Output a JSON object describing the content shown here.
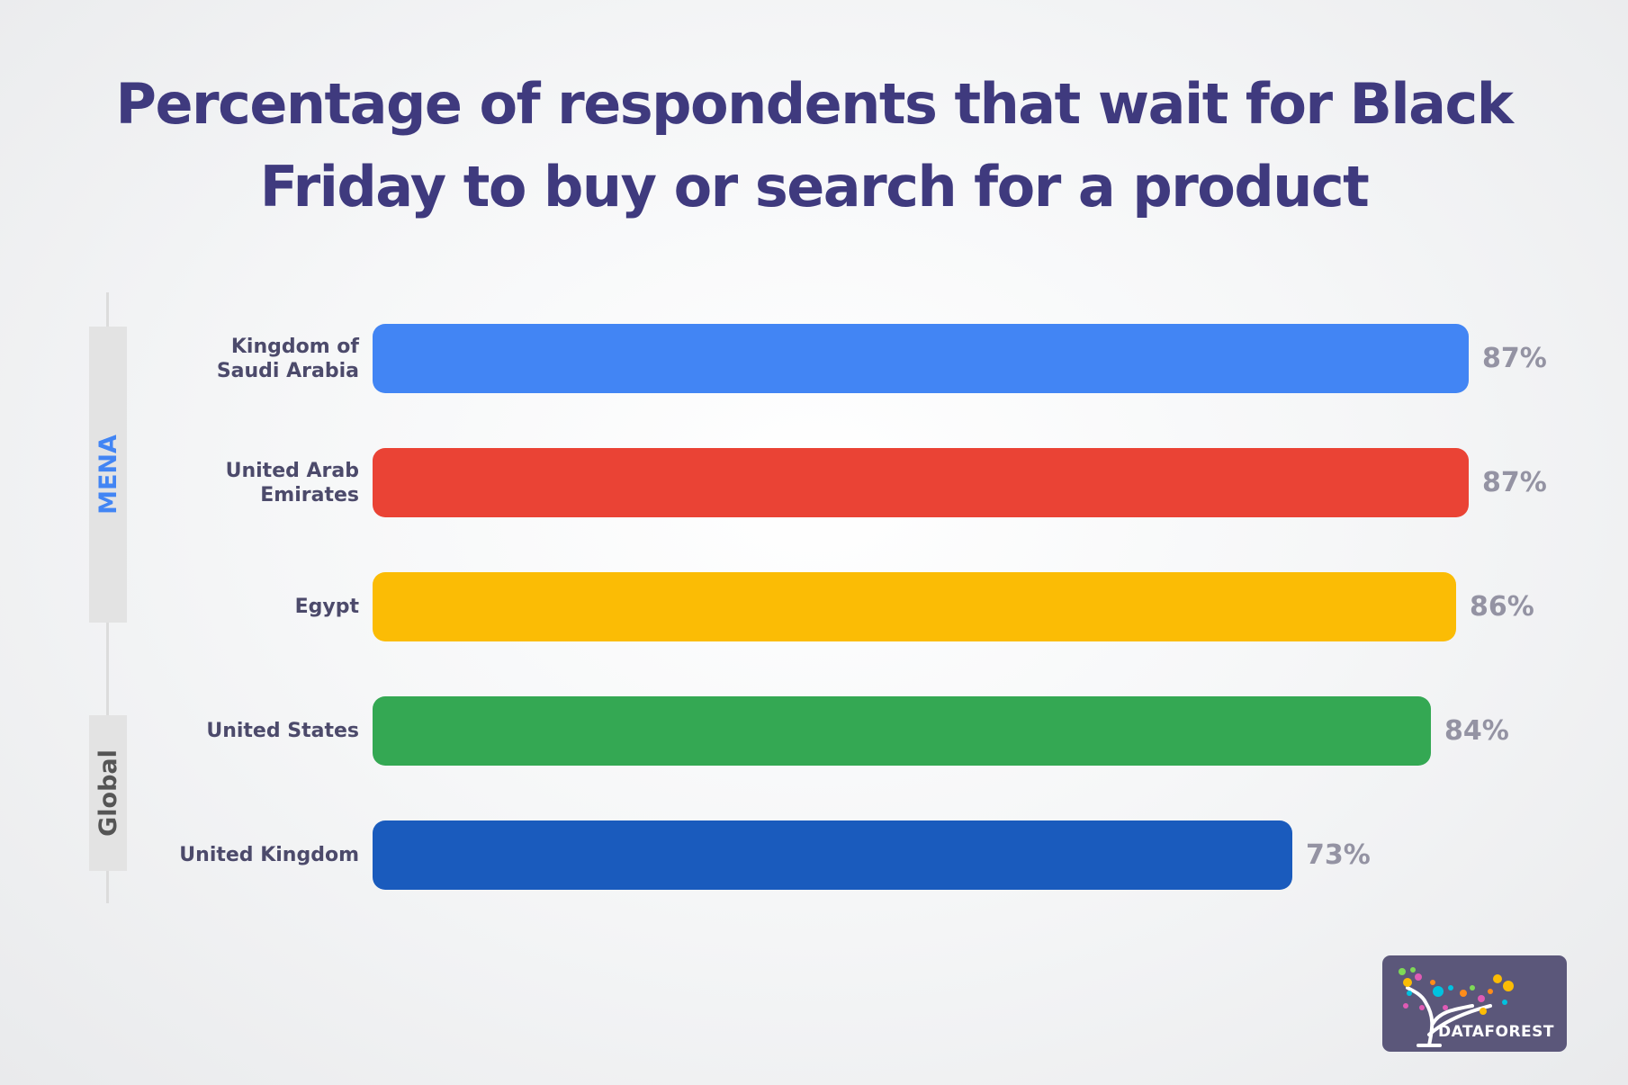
{
  "title_line1": "Percentage of respondents that wait for Black",
  "title_line2": "Friday to buy or search for a product",
  "groups": [
    {
      "label": "MENA",
      "color": "#4285f4"
    },
    {
      "label": "Global",
      "color": "#555555"
    }
  ],
  "logo": {
    "text": "DATAFOREST"
  },
  "chart_data": {
    "type": "bar",
    "orientation": "horizontal",
    "title": "Percentage of respondents that wait for Black Friday to buy or search for a product",
    "categories": [
      "Kingdom of Saudi Arabia",
      "United Arab Emirates",
      "Egypt",
      "United States",
      "United Kingdom"
    ],
    "values": [
      87,
      87,
      86,
      84,
      73
    ],
    "value_labels": [
      "87%",
      "87%",
      "86%",
      "84%",
      "73%"
    ],
    "colors": [
      "#4285f4",
      "#ea4335",
      "#fbbc05",
      "#34a853",
      "#1a5bbd"
    ],
    "groups": [
      {
        "name": "MENA",
        "categories": [
          "Kingdom of Saudi Arabia",
          "United Arab Emirates",
          "Egypt"
        ]
      },
      {
        "name": "Global",
        "categories": [
          "United States",
          "United Kingdom"
        ]
      }
    ],
    "xlabel": "",
    "ylabel": "",
    "unit": "%",
    "grid": false,
    "legend": "none"
  },
  "rows": [
    {
      "label": "Kingdom of Saudi Arabia",
      "value": 87,
      "value_label": "87%",
      "color": "#4285f4"
    },
    {
      "label": "United Arab Emirates",
      "value": 87,
      "value_label": "87%",
      "color": "#ea4335"
    },
    {
      "label": "Egypt",
      "value": 86,
      "value_label": "86%",
      "color": "#fbbc05"
    },
    {
      "label": "United States",
      "value": 84,
      "value_label": "84%",
      "color": "#34a853"
    },
    {
      "label": "United Kingdom",
      "value": 73,
      "value_label": "73%",
      "color": "#1a5bbd"
    }
  ]
}
